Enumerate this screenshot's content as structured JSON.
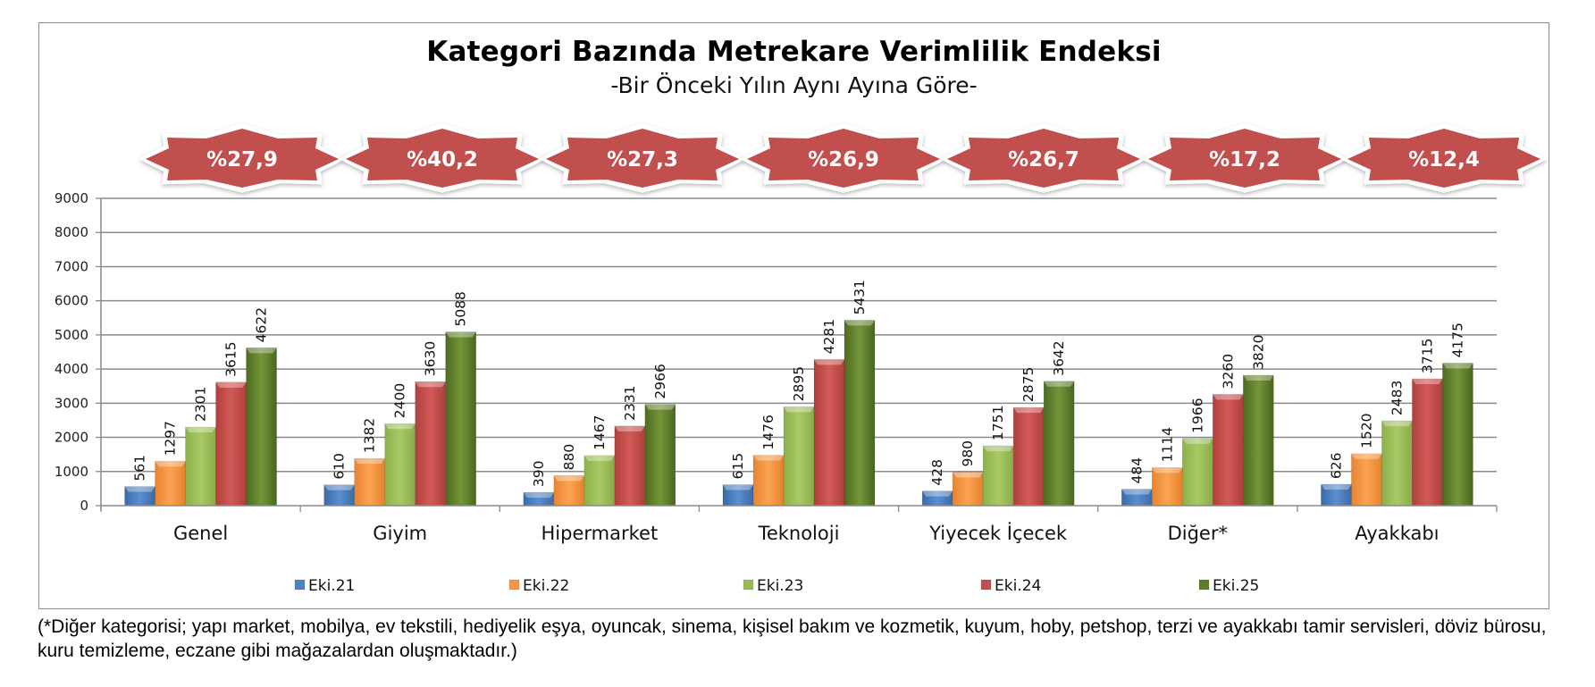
{
  "header": {
    "title": "Kategori Bazında Metrekare Verimlilik Endeksi",
    "subtitle": "-Bir Önceki Yılın Aynı Ayına Göre-"
  },
  "footnote": "(*Diğer kategorisi; yapı market, mobilya, ev tekstili, hediyelik eşya, oyuncak, sinema, kişisel bakım ve kozmetik, kuyum, hoby, petshop, terzi ve ayakkabı tamir servisleri, döviz bürosu, kuru temizleme, eczane gibi mağazalardan oluşmaktadır.)",
  "chart_data": {
    "type": "bar",
    "title": "Kategori Bazında Metrekare Verimlilik Endeksi",
    "subtitle": "-Bir Önceki Yılın Aynı Ayına Göre-",
    "xlabel": "",
    "ylabel": "",
    "ylim": [
      0,
      9000
    ],
    "yticks": [
      0,
      1000,
      2000,
      3000,
      4000,
      5000,
      6000,
      7000,
      8000,
      9000
    ],
    "grid": true,
    "legend_position": "bottom",
    "categories": [
      "Genel",
      "Giyim",
      "Hipermarket",
      "Teknoloji",
      "Yiyecek İçecek",
      "Diğer*",
      "Ayakkabı"
    ],
    "series": [
      {
        "name": "Eki.21",
        "color": "#4f81bd",
        "values": [
          561,
          610,
          390,
          615,
          428,
          484,
          626
        ]
      },
      {
        "name": "Eki.22",
        "color": "#f79646",
        "values": [
          1297,
          1382,
          880,
          1476,
          980,
          1114,
          1520
        ]
      },
      {
        "name": "Eki.23",
        "color": "#9bbb59",
        "values": [
          2301,
          2400,
          1467,
          2895,
          1751,
          1966,
          2483
        ]
      },
      {
        "name": "Eki.24",
        "color": "#c0504d",
        "values": [
          3615,
          3630,
          2331,
          4281,
          2875,
          3260,
          3715
        ]
      },
      {
        "name": "Eki.25",
        "color": "#5e7d2a",
        "values": [
          4622,
          5088,
          2966,
          5431,
          3642,
          3820,
          4175
        ]
      }
    ],
    "annotations": [
      "%27,9",
      "%40,2",
      "%27,3",
      "%26,9",
      "%26,7",
      "%17,2",
      "%12,4"
    ],
    "annotation_color": "#c0504d"
  }
}
